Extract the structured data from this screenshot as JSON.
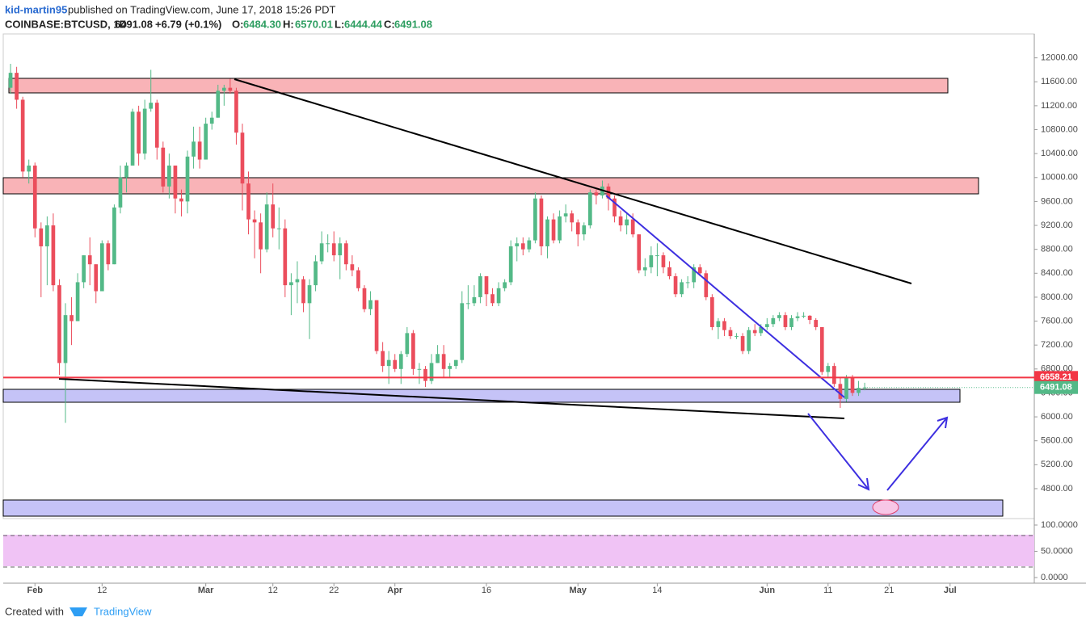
{
  "header": {
    "author": "kid-martin95",
    "published": "published on TradingView.com, June 17, 2018 15:26 PDT"
  },
  "symbol_line": {
    "symbol": "COINBASE:BTCUSD, 1D",
    "price": "6491.08",
    "change": "+6.79 (+0.1%)",
    "o_label": "O:",
    "o": "6484.30",
    "h_label": "H:",
    "h": "6570.01",
    "l_label": "L:",
    "l": "6444.44",
    "c_label": "C:",
    "c": "6491.08"
  },
  "footer": {
    "created": "Created with",
    "brand": "TradingView"
  },
  "chart_data": {
    "type": "candlestick",
    "up_color": "#53b987",
    "down_color": "#eb4d5c",
    "open": [
      11500,
      11750,
      11300,
      10100,
      10200,
      9150,
      8850,
      9200,
      8200,
      6900,
      7700,
      7600,
      8250,
      8700,
      8550,
      8100,
      8900,
      8550,
      9500,
      10000,
      10200,
      11100,
      10400,
      11150,
      11250,
      10500,
      9850,
      10200,
      9650,
      9600,
      10350,
      10600,
      10300,
      10900,
      11000,
      11450,
      11500,
      11450,
      10750,
      9900,
      9300,
      9250,
      8800,
      9550,
      9150,
      9150,
      8200,
      8250,
      8300,
      7900,
      8200,
      8600,
      8900,
      8900,
      8700,
      8900,
      8550,
      8450,
      8150,
      7800,
      7950,
      7100,
      6850,
      6950,
      6800,
      7050,
      7400,
      6800,
      6800,
      6600,
      6900,
      7050,
      6800,
      6850,
      6950,
      7900,
      7900,
      8000,
      8350,
      8050,
      7900,
      8150,
      8250,
      8850,
      8900,
      8800,
      8950,
      9650,
      8850,
      9300,
      8950,
      9350,
      9400,
      9250,
      9050,
      9200,
      9750,
      9700,
      9850,
      9650,
      9350,
      9200,
      9300,
      9050,
      8450,
      8500,
      8700,
      8700,
      8500,
      8350,
      8050,
      8250,
      8250,
      8500,
      8400,
      8000,
      7500,
      7600,
      7450,
      7350,
      7350,
      7100,
      7450,
      7400,
      7500,
      7550,
      7650,
      7700,
      7500,
      7650,
      7680,
      7690,
      7620,
      7500,
      6750,
      6850,
      6550,
      6300,
      6650,
      6400,
      6484.3
    ],
    "high": [
      11900,
      11850,
      11350,
      10300,
      10250,
      9250,
      9350,
      9400,
      8300,
      7900,
      8000,
      8400,
      8700,
      9000,
      8550,
      8950,
      8950,
      9550,
      10200,
      10250,
      11150,
      11200,
      11300,
      11800,
      11300,
      10600,
      10400,
      10200,
      9800,
      10450,
      10850,
      10850,
      11000,
      11100,
      11550,
      11550,
      11650,
      11500,
      10900,
      10100,
      9450,
      9400,
      9750,
      9900,
      9500,
      9300,
      8400,
      8600,
      8350,
      8300,
      8700,
      9100,
      9050,
      9100,
      9000,
      8950,
      8700,
      8500,
      8200,
      8100,
      7950,
      7250,
      7100,
      7050,
      7100,
      7500,
      7450,
      6900,
      6850,
      7050,
      7200,
      7200,
      6900,
      6950,
      8100,
      8200,
      8200,
      8400,
      8350,
      8150,
      8250,
      8300,
      8950,
      9000,
      9000,
      9000,
      9750,
      9700,
      9350,
      9400,
      9450,
      9550,
      9450,
      9300,
      9250,
      9800,
      9800,
      9950,
      9900,
      9700,
      9450,
      9400,
      9400,
      9050,
      8650,
      8850,
      8900,
      8750,
      8600,
      8400,
      8300,
      8350,
      8550,
      8550,
      8450,
      8050,
      7650,
      7650,
      7500,
      7400,
      7400,
      7500,
      7550,
      7550,
      7650,
      7700,
      7750,
      7750,
      7700,
      7750,
      7750,
      7700,
      7650,
      7500,
      6900,
      6900,
      6650,
      6700,
      6700,
      6600,
      6570.01
    ],
    "low": [
      11400,
      11150,
      10000,
      9900,
      9000,
      8000,
      8200,
      8100,
      6700,
      5900,
      7200,
      7600,
      8150,
      8200,
      7900,
      8100,
      8450,
      8550,
      9400,
      9750,
      10200,
      10200,
      10300,
      11100,
      10300,
      9750,
      9650,
      9400,
      9350,
      9400,
      10150,
      10150,
      10300,
      10800,
      11000,
      11200,
      11400,
      10550,
      9450,
      9050,
      8650,
      8400,
      8750,
      9000,
      8800,
      8000,
      7700,
      7900,
      7750,
      7300,
      8100,
      8550,
      8750,
      8600,
      8300,
      8450,
      8350,
      8100,
      7750,
      7700,
      7050,
      6750,
      6550,
      6750,
      6550,
      7000,
      6700,
      6550,
      6500,
      6550,
      6900,
      6650,
      6650,
      6800,
      6900,
      7800,
      7850,
      7900,
      7850,
      7850,
      7850,
      8100,
      8200,
      8600,
      8700,
      8750,
      8900,
      8700,
      8650,
      8900,
      8900,
      9250,
      9100,
      8850,
      8950,
      9150,
      9550,
      9650,
      9450,
      9250,
      9100,
      9050,
      9000,
      8400,
      8350,
      8400,
      8350,
      8400,
      8300,
      8000,
      8000,
      8150,
      8150,
      8350,
      7950,
      7450,
      7300,
      7350,
      7300,
      7300,
      7050,
      7050,
      7350,
      7350,
      7450,
      7500,
      7600,
      7450,
      7450,
      7600,
      7650,
      7550,
      7450,
      6700,
      6650,
      6500,
      6150,
      6250,
      6350,
      6350,
      6444.44
    ],
    "close": [
      11750,
      11300,
      10100,
      10200,
      9150,
      8850,
      9200,
      8200,
      6900,
      7700,
      7600,
      8250,
      8700,
      8550,
      8100,
      8900,
      8550,
      9500,
      10000,
      10200,
      11100,
      10400,
      11150,
      11250,
      10500,
      9850,
      10200,
      9650,
      9600,
      10350,
      10600,
      10300,
      10900,
      11000,
      11450,
      11500,
      11450,
      10750,
      9900,
      9300,
      9250,
      8800,
      9550,
      9150,
      9150,
      8200,
      8250,
      8300,
      7900,
      8200,
      8600,
      8900,
      8900,
      8700,
      8900,
      8550,
      8450,
      8150,
      7800,
      7950,
      7100,
      6850,
      6950,
      6800,
      7050,
      7400,
      6800,
      6800,
      6600,
      6900,
      7050,
      6800,
      6850,
      6950,
      7900,
      7900,
      8000,
      8350,
      8050,
      7900,
      8150,
      8250,
      8850,
      8900,
      8800,
      8950,
      9650,
      8850,
      9300,
      8950,
      9350,
      9400,
      9250,
      9050,
      9200,
      9750,
      9700,
      9850,
      9650,
      9350,
      9200,
      9300,
      9050,
      8450,
      8500,
      8700,
      8700,
      8500,
      8350,
      8050,
      8250,
      8250,
      8500,
      8400,
      8000,
      7500,
      7600,
      7450,
      7350,
      7350,
      7100,
      7450,
      7400,
      7500,
      7550,
      7650,
      7700,
      7500,
      7650,
      7680,
      7690,
      7620,
      7500,
      6750,
      6850,
      6550,
      6300,
      6650,
      6400,
      6484.3,
      6491.08
    ],
    "xlim": [
      -1.2,
      167.8
    ],
    "xticks": [
      {
        "value": 4,
        "label": "Feb"
      },
      {
        "value": 15,
        "label": "12"
      },
      {
        "value": 32,
        "label": "Mar"
      },
      {
        "value": 43,
        "label": "12"
      },
      {
        "value": 53,
        "label": "22"
      },
      {
        "value": 63,
        "label": "Apr"
      },
      {
        "value": 78,
        "label": "16"
      },
      {
        "value": 93,
        "label": "May"
      },
      {
        "value": 106,
        "label": "14"
      },
      {
        "value": 124,
        "label": "Jun"
      },
      {
        "value": 134,
        "label": "11"
      },
      {
        "value": 144,
        "label": "21"
      },
      {
        "value": 154,
        "label": "Jul"
      }
    ],
    "ylim": [
      4300,
      12400
    ],
    "yticks": [
      {
        "value": 4800,
        "label": "4800.00"
      },
      {
        "value": 5200,
        "label": "5200.00"
      },
      {
        "value": 5600,
        "label": "5600.00"
      },
      {
        "value": 6000,
        "label": "6000.00"
      },
      {
        "value": 6400,
        "label": "6400.00"
      },
      {
        "value": 6800,
        "label": "6800.00"
      },
      {
        "value": 7200,
        "label": "7200.00"
      },
      {
        "value": 7600,
        "label": "7600.00"
      },
      {
        "value": 8000,
        "label": "8000.00"
      },
      {
        "value": 8400,
        "label": "8400.00"
      },
      {
        "value": 8800,
        "label": "8800.00"
      },
      {
        "value": 9200,
        "label": "9200.00"
      },
      {
        "value": 9600,
        "label": "9600.00"
      },
      {
        "value": 10000,
        "label": "10000.00"
      },
      {
        "value": 10400,
        "label": "10400.00"
      },
      {
        "value": 10800,
        "label": "10800.00"
      },
      {
        "value": 11200,
        "label": "11200.00"
      },
      {
        "value": 11600,
        "label": "11600.00"
      },
      {
        "value": 12000,
        "label": "12000.00"
      }
    ],
    "level_line": {
      "value": 6658.21,
      "label": "6658.21",
      "color": "#f23645"
    },
    "last_price": {
      "value": 6491.08,
      "label": "6491.08",
      "color": "#53b987"
    },
    "oscillator": {
      "ylim": [
        0,
        100
      ],
      "yticks": [
        {
          "value": 100,
          "label": "100.0000"
        },
        {
          "value": 50,
          "label": "50.0000"
        },
        {
          "value": 0,
          "label": "0.0000"
        }
      ],
      "bands": [
        80,
        20
      ]
    }
  }
}
